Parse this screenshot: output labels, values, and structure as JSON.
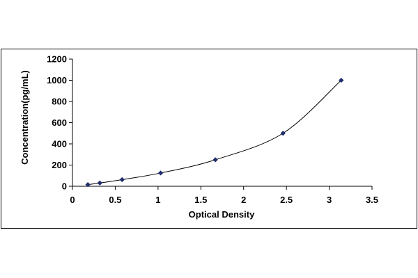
{
  "chart_data": {
    "type": "scatter",
    "title": "",
    "xlabel": "Optical Density",
    "ylabel": "Concentration(pg/mL)",
    "xlim": [
      0,
      3.5
    ],
    "ylim": [
      0,
      1200
    ],
    "xticks": [
      0,
      0.5,
      1,
      1.5,
      2,
      2.5,
      3,
      3.5
    ],
    "yticks": [
      0,
      200,
      400,
      600,
      800,
      1000,
      1200
    ],
    "xtick_labels": [
      "0",
      "0.5",
      "1",
      "1.5",
      "2",
      "2.5",
      "3",
      "3.5"
    ],
    "ytick_labels": [
      "0",
      "200",
      "400",
      "600",
      "800",
      "1000",
      "1200"
    ],
    "grid": false,
    "legend": "none",
    "trendline": "smooth",
    "series": [
      {
        "color": "#1F2D6B",
        "line_color": "#000000",
        "marker": "diamond",
        "x": [
          0.18,
          0.32,
          0.58,
          1.03,
          1.67,
          2.46,
          3.14
        ],
        "y": [
          15.6,
          31.25,
          62.5,
          125,
          250,
          500,
          1000
        ]
      }
    ]
  }
}
